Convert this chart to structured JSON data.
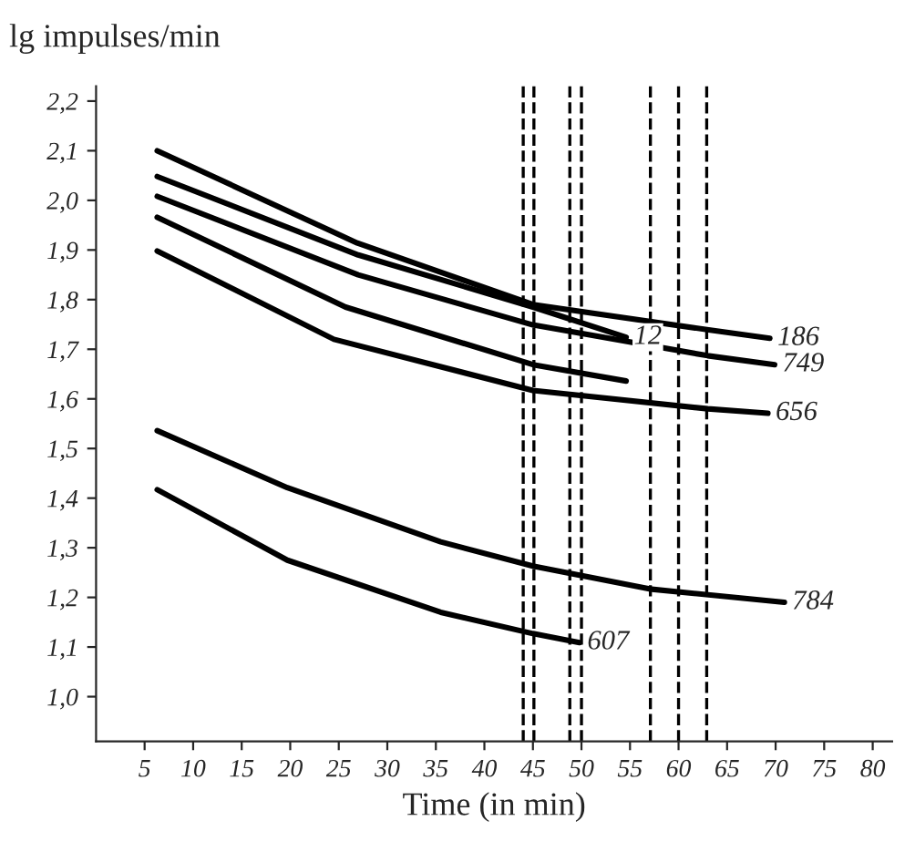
{
  "chart_data": {
    "type": "line",
    "xlabel": "Time (in min)",
    "ylabel": "lg impulses/min",
    "xlim": [
      0,
      82
    ],
    "ylim": [
      0.91,
      2.23
    ],
    "xticks": [
      5,
      10,
      15,
      20,
      25,
      30,
      35,
      40,
      45,
      50,
      55,
      60,
      65,
      70,
      75,
      80
    ],
    "yticks": [
      {
        "value": 1.0,
        "label": "1,0"
      },
      {
        "value": 1.1,
        "label": "1,1"
      },
      {
        "value": 1.2,
        "label": "1,2"
      },
      {
        "value": 1.3,
        "label": "1,3"
      },
      {
        "value": 1.4,
        "label": "1,4"
      },
      {
        "value": 1.5,
        "label": "1,5"
      },
      {
        "value": 1.6,
        "label": "1,6"
      },
      {
        "value": 1.7,
        "label": "1,7"
      },
      {
        "value": 1.8,
        "label": "1,8"
      },
      {
        "value": 1.9,
        "label": "1,9"
      },
      {
        "value": 2.0,
        "label": "2,0"
      },
      {
        "value": 2.1,
        "label": "2,1"
      },
      {
        "value": 2.2,
        "label": "2,2"
      }
    ],
    "grid": false,
    "legend": false,
    "marker": "none",
    "line_style": "solid",
    "series": [
      {
        "name": "186",
        "color": "#000000",
        "x": [
          6.3,
          26.9,
          45,
          63.1,
          69.4
        ],
        "values": [
          2.1,
          1.914,
          1.79,
          1.739,
          1.722
        ]
      },
      {
        "name": "12",
        "color": "#000000",
        "x": [
          6.3,
          27,
          45,
          54.6
        ],
        "values": [
          2.048,
          1.89,
          1.785,
          1.724
        ]
      },
      {
        "name": "749",
        "color": "#000000",
        "x": [
          6.3,
          27,
          45,
          63,
          69.9
        ],
        "values": [
          2.008,
          1.85,
          1.749,
          1.687,
          1.669
        ]
      },
      {
        "color": "#000000",
        "x": [
          6.3,
          25.7,
          45,
          54.6
        ],
        "values": [
          1.966,
          1.785,
          1.669,
          1.636
        ]
      },
      {
        "name": "656",
        "color": "#000000",
        "x": [
          6.3,
          24.5,
          45,
          63,
          69.2
        ],
        "values": [
          1.898,
          1.72,
          1.617,
          1.58,
          1.571
        ]
      },
      {
        "name": "784",
        "color": "#000000",
        "x": [
          6.3,
          19.7,
          35.5,
          45,
          57,
          70.9
        ],
        "values": [
          1.536,
          1.421,
          1.312,
          1.263,
          1.217,
          1.19
        ]
      },
      {
        "name": "607",
        "color": "#000000",
        "x": [
          6.3,
          19.7,
          35.5,
          45,
          49.8
        ],
        "values": [
          1.417,
          1.275,
          1.17,
          1.127,
          1.109
        ]
      }
    ],
    "ref_lines": [
      {
        "axis": "x",
        "value": 44.0,
        "line_style": "dashed",
        "color": "#000000"
      },
      {
        "axis": "x",
        "value": 45.1,
        "line_style": "dashed",
        "color": "#000000"
      },
      {
        "axis": "x",
        "value": 48.8,
        "line_style": "dashed",
        "color": "#000000"
      },
      {
        "axis": "x",
        "value": 50.0,
        "line_style": "dashed",
        "color": "#000000"
      },
      {
        "axis": "x",
        "value": 57.1,
        "line_style": "dashed",
        "color": "#000000"
      },
      {
        "axis": "x",
        "value": 60.0,
        "line_style": "dashed",
        "color": "#000000"
      },
      {
        "axis": "x",
        "value": 62.9,
        "line_style": "dashed",
        "color": "#000000"
      }
    ]
  }
}
